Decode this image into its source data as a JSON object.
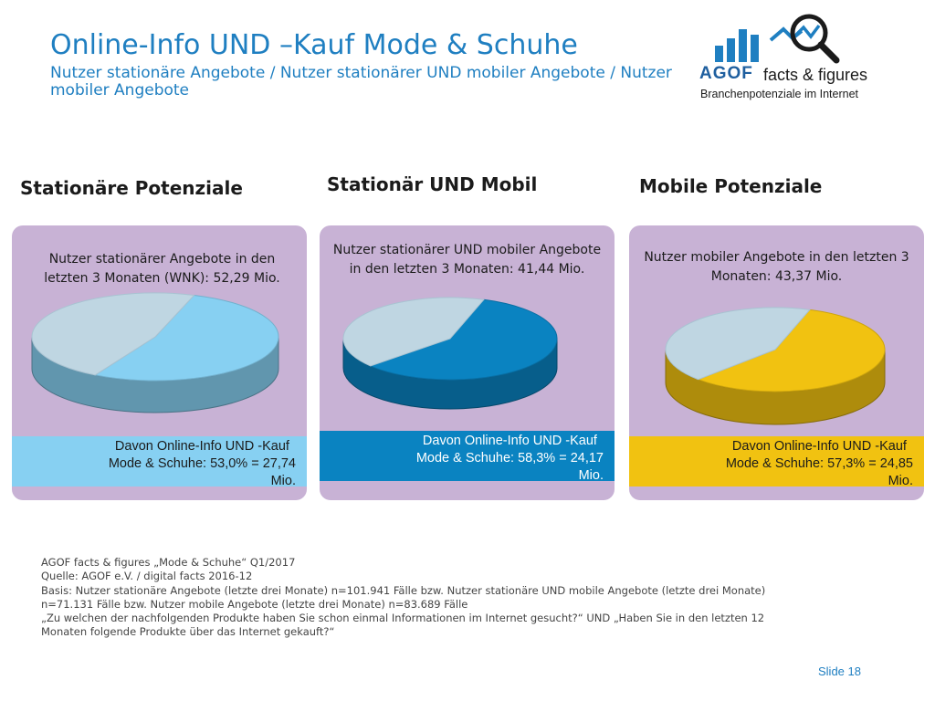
{
  "header": {
    "title": "Online-Info UND –Kauf Mode & Schuhe",
    "subtitle": "Nutzer stationäre Angebote / Nutzer stationärer UND mobiler Angebote / Nutzer mobiler Angebote"
  },
  "logo": {
    "brand": "AGOF",
    "product": "facts & figures",
    "tagline": "Branchenpotenziale im Internet"
  },
  "columns": [
    {
      "heading": "Stationäre Potenziale",
      "description": "Nutzer stationärer Angebote in den letzten 3 Monaten (WNK): 52,29 Mio.",
      "result_line1": "Davon Online-Info UND -Kauf",
      "result_line2": "Mode & Schuhe: 53,0% = 27,74",
      "result_line3": "Mio."
    },
    {
      "heading": "Stationär UND Mobil",
      "description": "Nutzer stationärer UND mobiler Angebote in den letzten 3 Monaten: 41,44 Mio.",
      "result_line1": "Davon Online-Info UND -Kauf",
      "result_line2": "Mode & Schuhe: 58,3% = 24,17",
      "result_line3": "Mio."
    },
    {
      "heading": "Mobile Potenziale",
      "description": "Nutzer mobiler Angebote in den letzten 3 Monaten: 43,37 Mio.",
      "result_line1": "Davon Online-Info UND -Kauf",
      "result_line2": "Mode & Schuhe: 57,3% = 24,85",
      "result_line3": "Mio."
    }
  ],
  "chart_data": [
    {
      "type": "pie",
      "title": "Stationäre Potenziale",
      "categories": [
        "Davon Online-Info UND -Kauf Mode & Schuhe",
        ""
      ],
      "values": [
        53.0,
        47.0
      ],
      "total_mio": 52.29,
      "highlight_mio": 27.74,
      "colors": [
        "#87d0f2",
        "#bfd6e2"
      ]
    },
    {
      "type": "pie",
      "title": "Stationär UND Mobil",
      "categories": [
        "Davon Online-Info UND -Kauf Mode & Schuhe",
        ""
      ],
      "values": [
        58.3,
        41.7
      ],
      "total_mio": 41.44,
      "highlight_mio": 24.17,
      "colors": [
        "#0a83c1",
        "#bfd6e2"
      ]
    },
    {
      "type": "pie",
      "title": "Mobile Potenziale",
      "categories": [
        "Davon Online-Info UND -Kauf Mode & Schuhe",
        ""
      ],
      "values": [
        57.3,
        42.7
      ],
      "total_mio": 43.37,
      "highlight_mio": 24.85,
      "colors": [
        "#f1c211",
        "#bfd6e2"
      ]
    }
  ],
  "colors": {
    "title": "#1f7fc1",
    "card_background": "#c8b2d5",
    "band_stationary": "#87d0f2",
    "band_both": "#0a83c1",
    "band_mobile": "#f1c211",
    "rest_slice": "#bfd6e2"
  },
  "footnote": {
    "line1": "AGOF facts & figures „Mode & Schuhe“ Q1/2017",
    "line2": "Quelle: AGOF e.V. / digital facts 2016-12",
    "line3": "Basis: Nutzer stationäre Angebote (letzte drei Monate) n=101.941 Fälle bzw. Nutzer stationäre UND mobile Angebote (letzte drei Monate)",
    "line4": "n=71.131 Fälle bzw. Nutzer mobile Angebote (letzte drei Monate) n=83.689 Fälle",
    "line5": "„Zu welchen der nachfolgenden Produkte haben Sie schon einmal Informationen im Internet gesucht?“ UND „Haben Sie in den letzten 12",
    "line6": "Monaten folgende Produkte über das Internet gekauft?“"
  },
  "slide_number": "Slide 18"
}
